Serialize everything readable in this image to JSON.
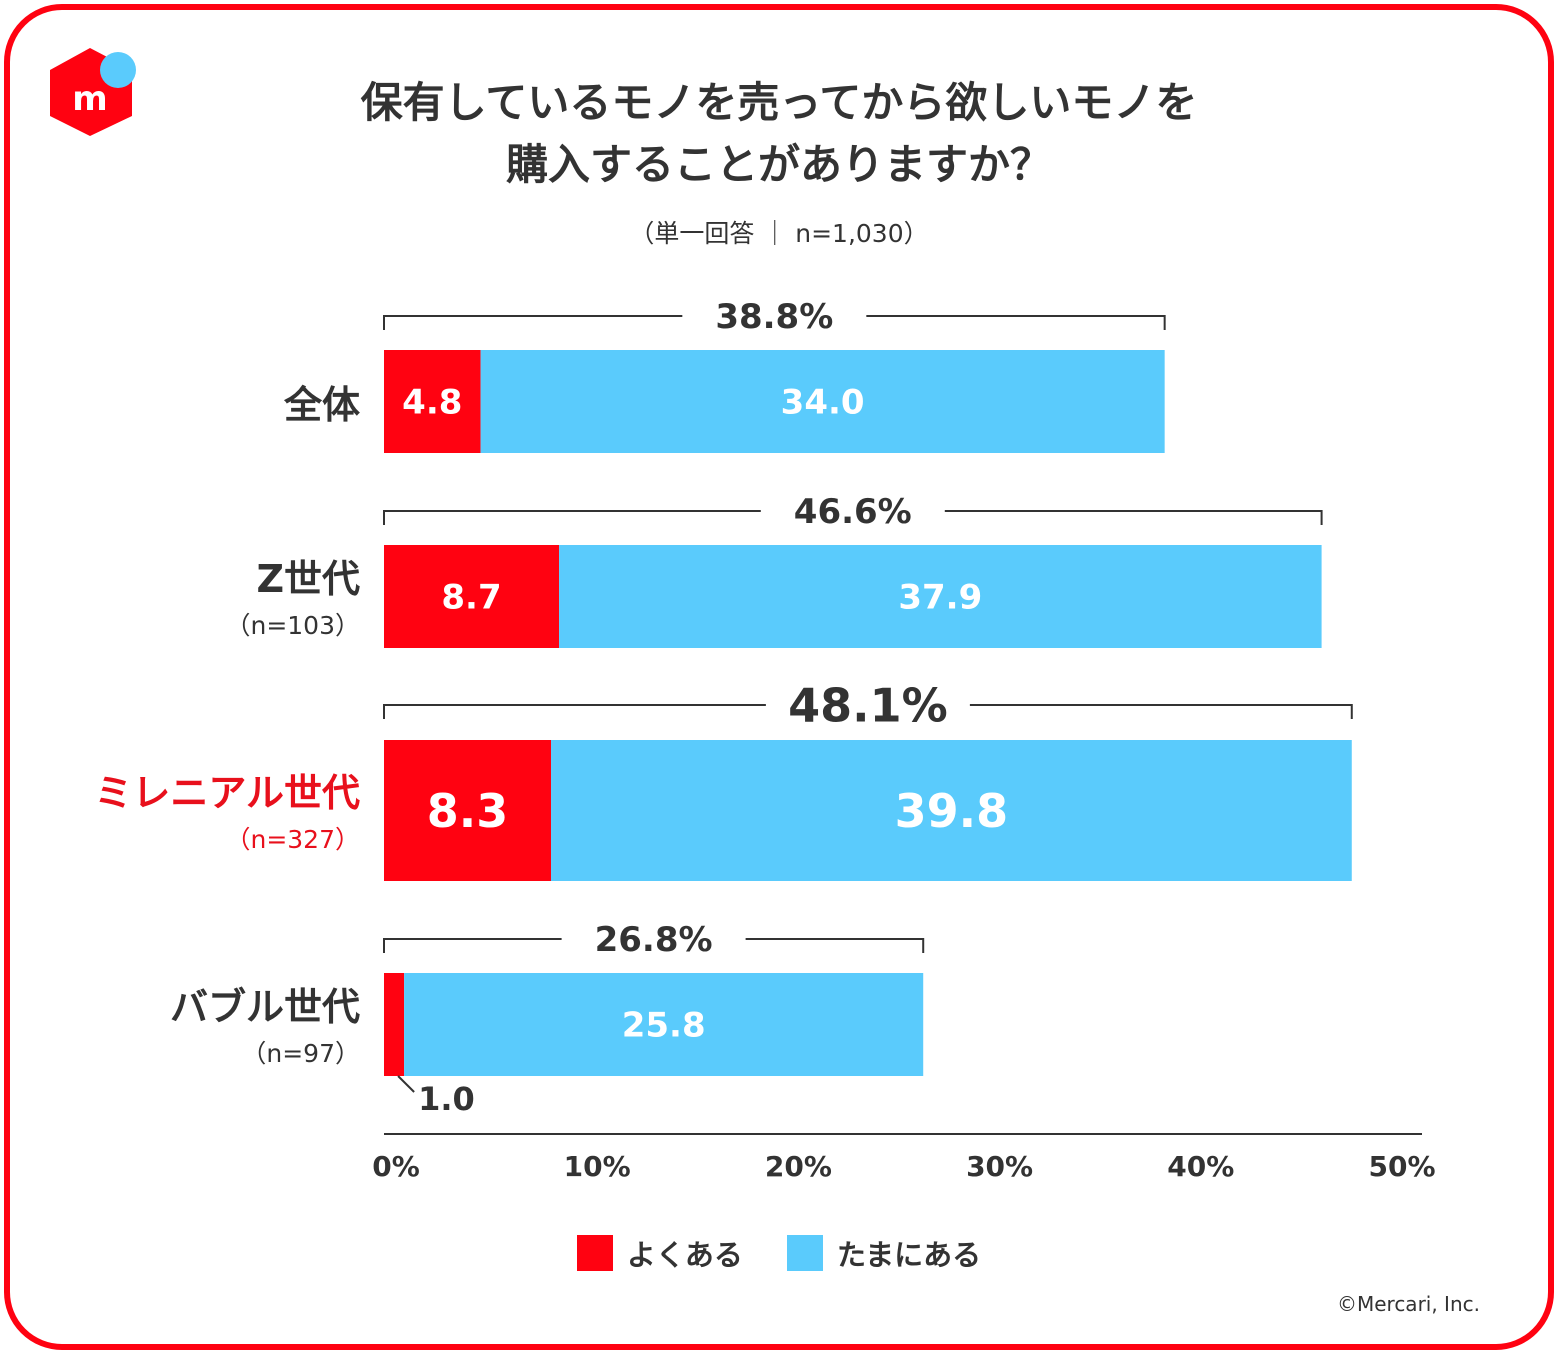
{
  "title_line1": "保有しているモノを売ってから欲しいモノを",
  "title_line2": "購入することがありますか？",
  "subtitle": "（単一回答 ｜ n=1,030）",
  "copyright": "©Mercari, Inc.",
  "logo_letter": "m",
  "colors": {
    "frame": "#ff0211",
    "often": "#ff0211",
    "sometimes": "#5acbfc",
    "text": "#333333",
    "highlight": "#e8101c"
  },
  "chart_data": {
    "type": "bar",
    "orientation": "horizontal",
    "stacked": true,
    "xlim": [
      0,
      50
    ],
    "xticks": [
      "0%",
      "10%",
      "20%",
      "30%",
      "40%",
      "50%"
    ],
    "series": [
      {
        "name": "よくある",
        "values": [
          4.8,
          8.7,
          8.3,
          1.0
        ]
      },
      {
        "name": "たまにある",
        "values": [
          34.0,
          37.9,
          39.8,
          25.8
        ]
      }
    ],
    "categories": [
      {
        "label": "全体",
        "n": "",
        "total": "38.8%",
        "often": "4.8",
        "sometimes": "34.0",
        "highlight": false
      },
      {
        "label": "Z世代",
        "n": "（n=103）",
        "total": "46.6%",
        "often": "8.7",
        "sometimes": "37.9",
        "highlight": false
      },
      {
        "label": "ミレニアル世代",
        "n": "（n=327）",
        "total": "48.1%",
        "often": "8.3",
        "sometimes": "39.8",
        "highlight": true
      },
      {
        "label": "バブル世代",
        "n": "（n=97）",
        "total": "26.8%",
        "often": "1.0",
        "sometimes": "25.8",
        "highlight": false
      }
    ],
    "legend": [
      "よくある",
      "たまにある"
    ]
  }
}
